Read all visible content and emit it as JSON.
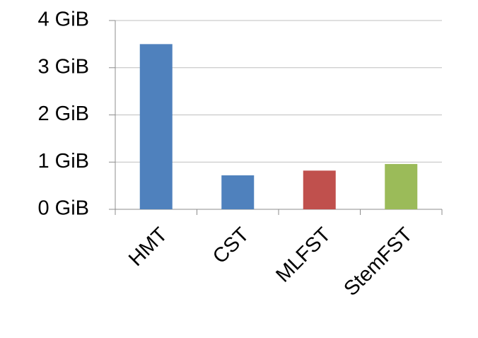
{
  "chart_data": {
    "type": "bar",
    "categories": [
      "HMT",
      "CST",
      "MLFST",
      "StemFST"
    ],
    "values": [
      3.5,
      0.72,
      0.82,
      0.96
    ],
    "colors": [
      "#4f81bd",
      "#4f81bd",
      "#c0504d",
      "#9bbb59"
    ],
    "ylim": [
      0,
      4
    ],
    "yticks": [
      {
        "value": 0,
        "label": "0 GiB"
      },
      {
        "value": 1,
        "label": "1 GiB"
      },
      {
        "value": 2,
        "label": "2 GiB"
      },
      {
        "value": 3,
        "label": "3 GiB"
      },
      {
        "value": 4,
        "label": "4 GiB"
      }
    ],
    "grid": true
  }
}
